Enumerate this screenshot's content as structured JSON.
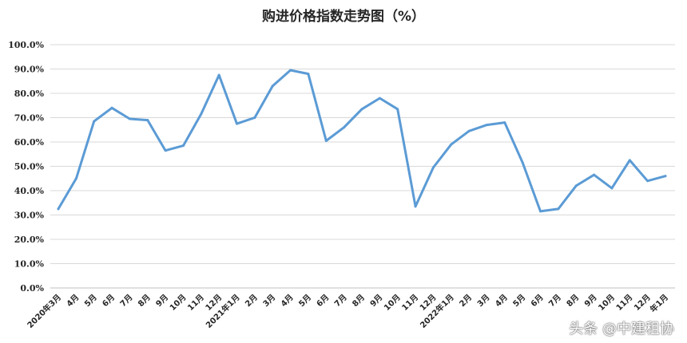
{
  "chart_data": {
    "type": "line",
    "title": "购进价格指数走势图（%）",
    "xlabel": "",
    "ylabel": "",
    "ylim": [
      0,
      100
    ],
    "y_tick_labels": [
      "0.0%",
      "10.0%",
      "20.0%",
      "30.0%",
      "40.0%",
      "50.0%",
      "60.0%",
      "70.0%",
      "80.0%",
      "90.0%",
      "100.0%"
    ],
    "grid": true,
    "legend": "none",
    "line_color": "#5B9BD5",
    "categories": [
      "2020年3月",
      "4月",
      "5月",
      "6月",
      "7月",
      "8月",
      "9月",
      "10月",
      "11月",
      "12月",
      "2021年1月",
      "2月",
      "3月",
      "4月",
      "5月",
      "6月",
      "7月",
      "8月",
      "9月",
      "10月",
      "11月",
      "12月",
      "2022年1月",
      "2月",
      "3月",
      "4月",
      "5月",
      "6月",
      "7月",
      "8月",
      "9月",
      "10月",
      "11月",
      "12月",
      "年1月"
    ],
    "series": [
      {
        "values": [
          32.5,
          45.0,
          68.5,
          74.0,
          69.5,
          69.0,
          56.5,
          58.5,
          71.5,
          87.5,
          67.5,
          70.0,
          83.0,
          89.5,
          88.0,
          60.5,
          66.0,
          73.5,
          78.0,
          73.5,
          33.5,
          49.5,
          59.0,
          64.5,
          67.0,
          68.0,
          51.5,
          31.5,
          32.5,
          42.0,
          46.5,
          41.0,
          52.5,
          44.0,
          46.0
        ]
      }
    ]
  },
  "watermark": "头条 @中建租协"
}
